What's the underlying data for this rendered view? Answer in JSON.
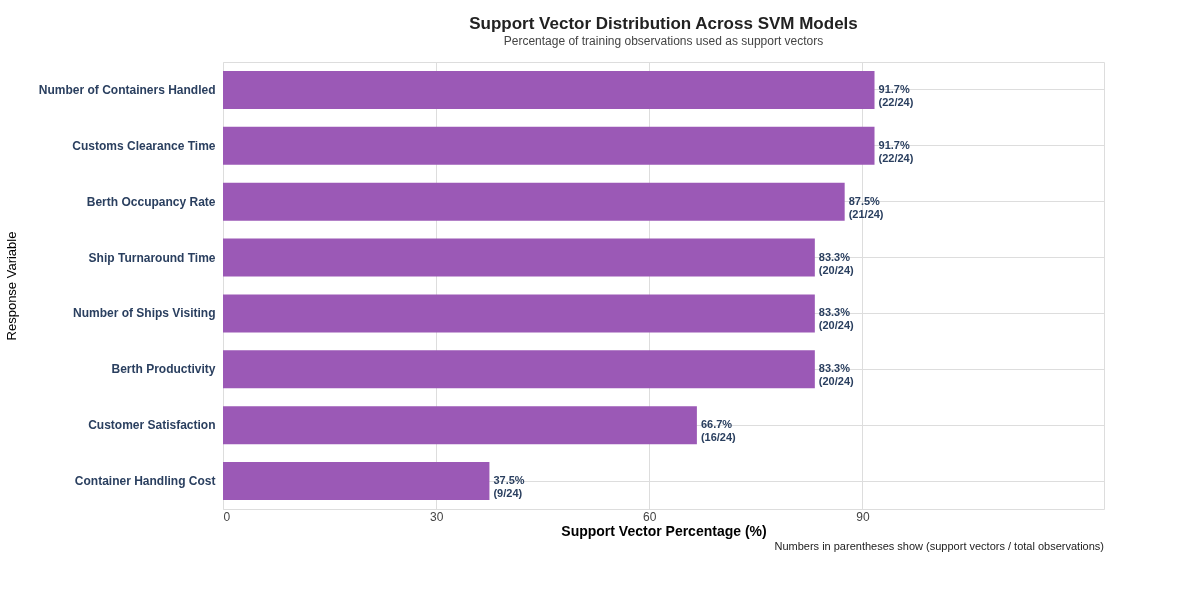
{
  "chart_data": {
    "type": "bar",
    "orientation": "horizontal",
    "title": "Support Vector Distribution Across SVM Models",
    "subtitle": "Percentage of training observations used as support vectors",
    "xlabel": "Support Vector Percentage (%)",
    "ylabel": "Response Variable",
    "categories": [
      "Number of Containers Handled",
      "Customs Clearance Time",
      "Berth Occupancy Rate",
      "Ship Turnaround Time",
      "Number of Ships Visiting",
      "Berth Productivity",
      "Customer Satisfaction",
      "Container Handling Cost"
    ],
    "values": [
      91.7,
      91.7,
      87.5,
      83.3,
      83.3,
      83.3,
      66.7,
      37.5
    ],
    "value_labels": [
      "91.7%\n(22/24)",
      "91.7%\n(22/24)",
      "87.5%\n(21/24)",
      "83.3%\n(20/24)",
      "83.3%\n(20/24)",
      "83.3%\n(20/24)",
      "66.7%\n(16/24)",
      "37.5%\n(9/24)"
    ],
    "color": "#9b59b6",
    "xlim": [
      0,
      124
    ],
    "xticks": [
      0,
      30,
      60,
      90
    ],
    "grid": true,
    "annotations": [
      "Numbers in parentheses show (support vectors / total observations)"
    ]
  }
}
